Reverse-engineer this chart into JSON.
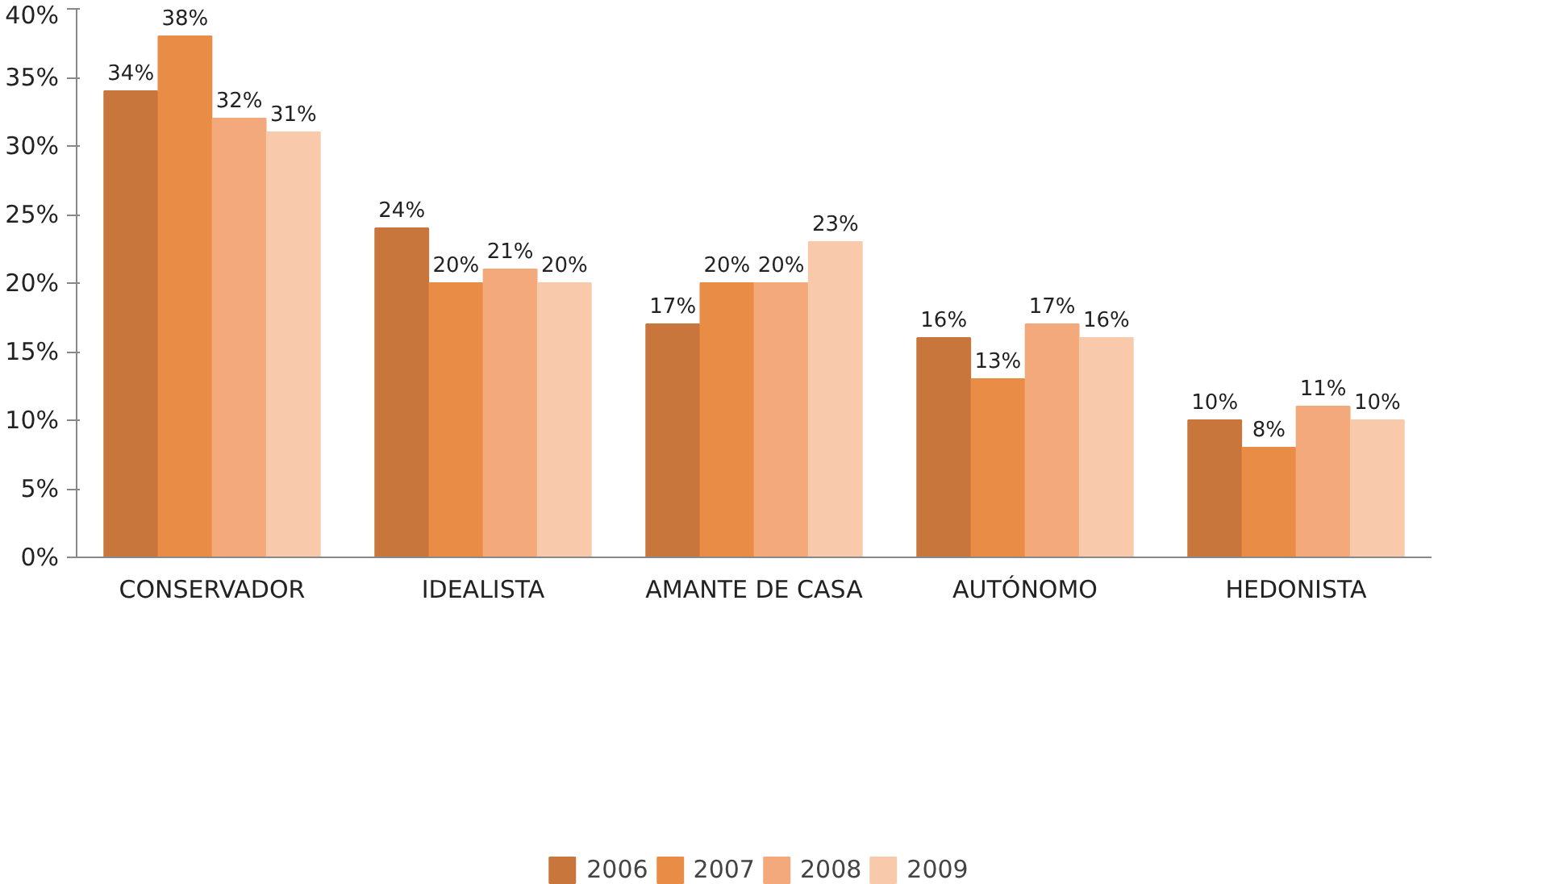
{
  "chart_data": {
    "type": "bar",
    "categories": [
      "CONSERVADOR",
      "IDEALISTA",
      "AMANTE DE CASA",
      "AUTÓNOMO",
      "HEDONISTA"
    ],
    "series": [
      {
        "name": "2006",
        "color": "#c8763c",
        "values": [
          34,
          24,
          17,
          16,
          10
        ],
        "value_labels": [
          "34%",
          "24%",
          "17%",
          "16%",
          "10%"
        ]
      },
      {
        "name": "2007",
        "color": "#e98c45",
        "values": [
          38,
          20,
          20,
          13,
          8
        ],
        "value_labels": [
          "38%",
          "20%",
          "20%",
          "13%",
          "8%"
        ]
      },
      {
        "name": "2008",
        "color": "#f3a97c",
        "values": [
          32,
          21,
          20,
          17,
          11
        ],
        "value_labels": [
          "32%",
          "21%",
          "20%",
          "17%",
          "11%"
        ]
      },
      {
        "name": "2009",
        "color": "#f8c9ab",
        "values": [
          31,
          20,
          23,
          16,
          10
        ],
        "value_labels": [
          "31%",
          "20%",
          "23%",
          "16%",
          "10%"
        ]
      }
    ],
    "ylim": [
      0,
      40
    ],
    "yticks": [
      {
        "value": 0,
        "label": "0%"
      },
      {
        "value": 5,
        "label": "5%"
      },
      {
        "value": 10,
        "label": "10%"
      },
      {
        "value": 15,
        "label": "15%"
      },
      {
        "value": 20,
        "label": "20%"
      },
      {
        "value": 25,
        "label": "25%"
      },
      {
        "value": 30,
        "label": "30%"
      },
      {
        "value": 35,
        "label": "35%"
      },
      {
        "value": 40,
        "label": "40%"
      }
    ],
    "legend": "bottom"
  }
}
